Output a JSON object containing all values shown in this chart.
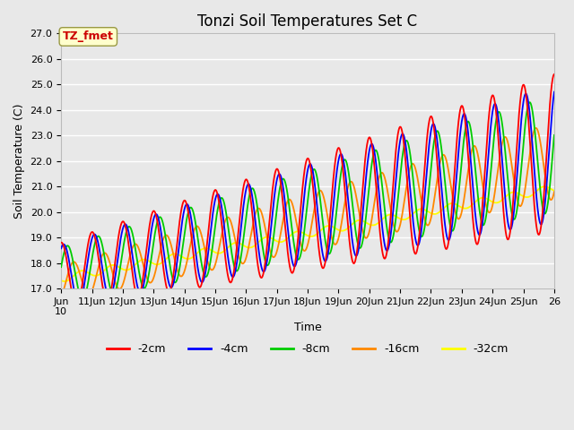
{
  "title": "Tonzi Soil Temperatures Set C",
  "xlabel": "Time",
  "ylabel": "Soil Temperature (C)",
  "ylim": [
    17.0,
    27.0
  ],
  "yticks": [
    17.0,
    18.0,
    19.0,
    20.0,
    21.0,
    22.0,
    23.0,
    24.0,
    25.0,
    26.0,
    27.0
  ],
  "colors": {
    "-2cm": "#ff0000",
    "-4cm": "#0000ff",
    "-8cm": "#00cc00",
    "-16cm": "#ff8800",
    "-32cm": "#ffff00"
  },
  "legend_labels": [
    "-2cm",
    "-4cm",
    "-8cm",
    "-16cm",
    "-32cm"
  ],
  "annotation_text": "TZ_fmet",
  "annotation_color": "#cc0000",
  "annotation_bg": "#ffffcc",
  "plot_bg": "#e8e8e8",
  "fig_bg": "#e8e8e8",
  "grid_color": "#ffffff",
  "title_fontsize": 12,
  "axis_label_fontsize": 9,
  "tick_fontsize": 8,
  "legend_fontsize": 9
}
